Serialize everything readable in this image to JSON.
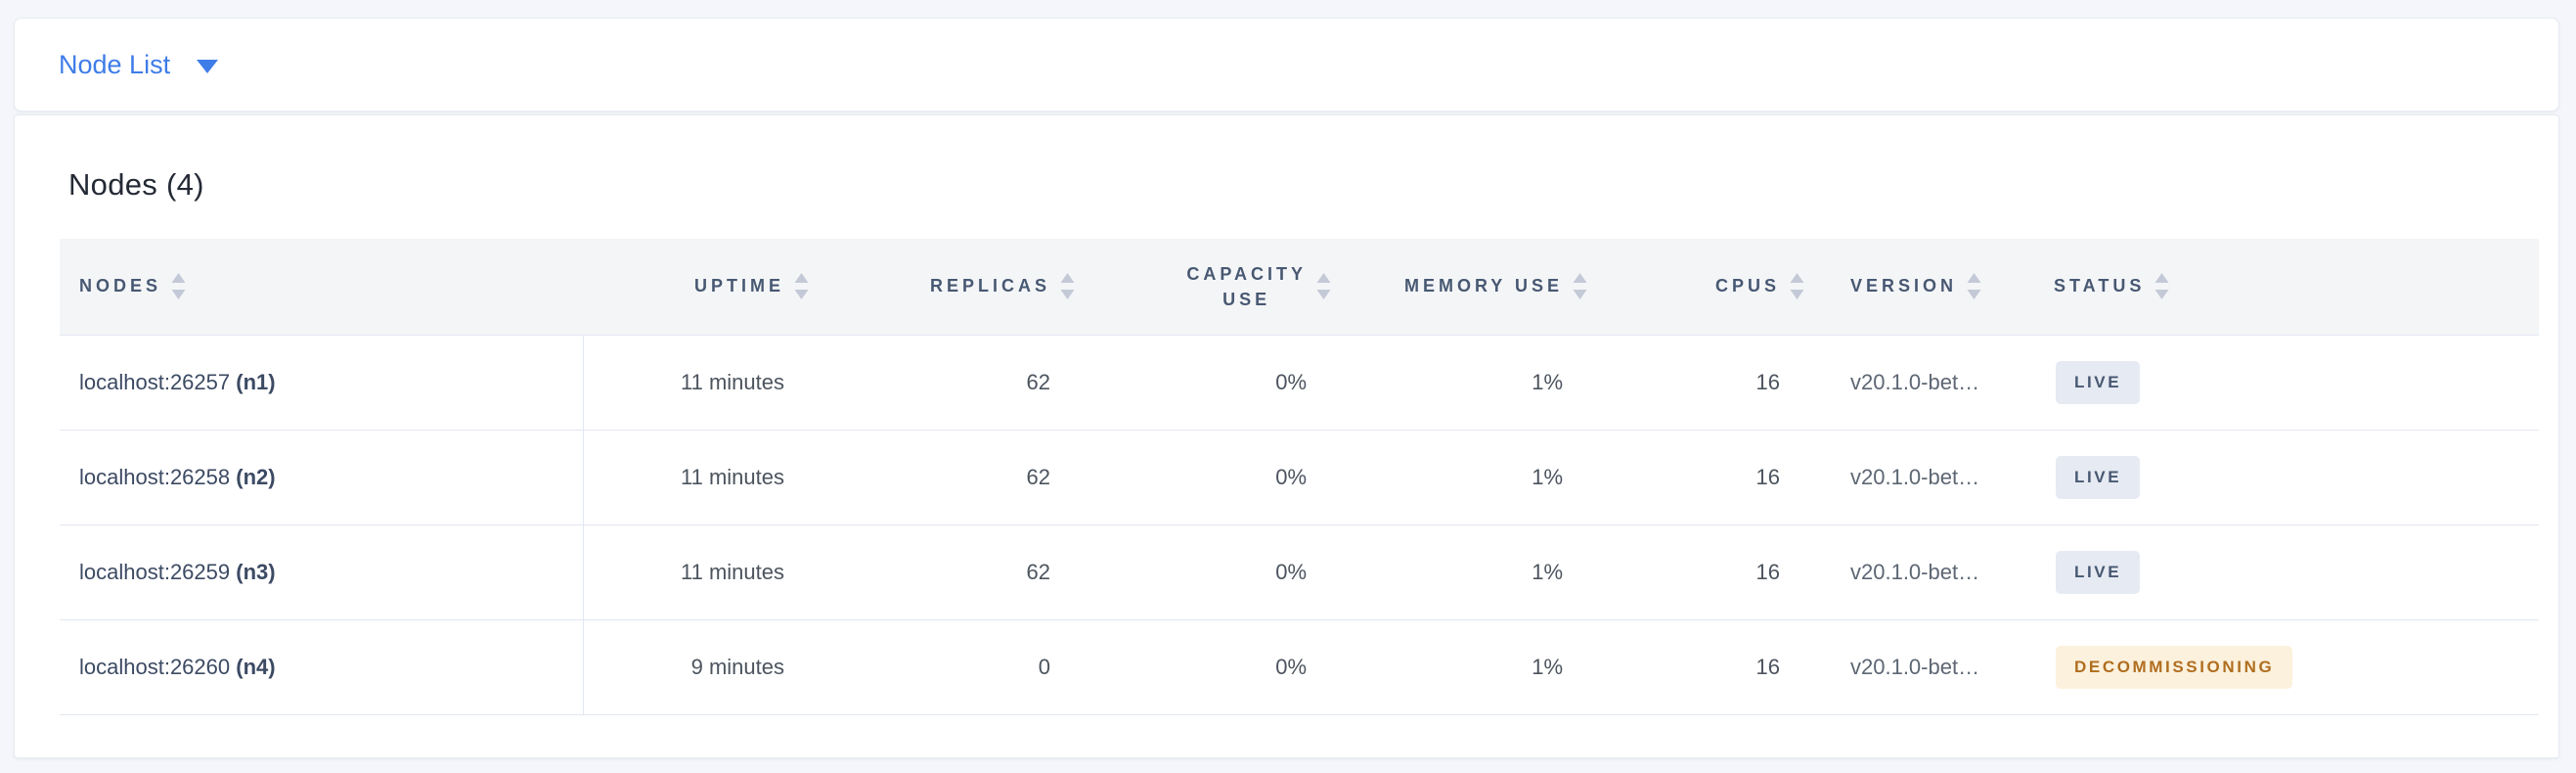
{
  "topbar": {
    "dropdown_label": "Node List",
    "dropdown_icon": "chevron-down-icon"
  },
  "panel": {
    "title": "Nodes (4)",
    "node_count": 4
  },
  "table": {
    "columns": [
      {
        "id": "nodes",
        "label": "NODES",
        "align": "left"
      },
      {
        "id": "uptime",
        "label": "UPTIME",
        "align": "right"
      },
      {
        "id": "replicas",
        "label": "REPLICAS",
        "align": "right"
      },
      {
        "id": "capacity_use",
        "label": "CAPACITY USE",
        "label_lines": [
          "CAPACITY",
          "USE"
        ],
        "align": "right"
      },
      {
        "id": "memory_use",
        "label": "MEMORY USE",
        "align": "right"
      },
      {
        "id": "cpus",
        "label": "CPUS",
        "align": "right"
      },
      {
        "id": "version",
        "label": "VERSION",
        "align": "left"
      },
      {
        "id": "status",
        "label": "STATUS",
        "align": "left"
      }
    ],
    "sort_icon": "sort-arrows-icon",
    "rows": [
      {
        "address": "localhost:26257",
        "node_id": "(n1)",
        "uptime": "11 minutes",
        "replicas": "62",
        "capacity_use": "0%",
        "memory_use": "1%",
        "cpus": "16",
        "version": "v20.1.0-bet…",
        "status": "LIVE"
      },
      {
        "address": "localhost:26258",
        "node_id": "(n2)",
        "uptime": "11 minutes",
        "replicas": "62",
        "capacity_use": "0%",
        "memory_use": "1%",
        "cpus": "16",
        "version": "v20.1.0-bet…",
        "status": "LIVE"
      },
      {
        "address": "localhost:26259",
        "node_id": "(n3)",
        "uptime": "11 minutes",
        "replicas": "62",
        "capacity_use": "0%",
        "memory_use": "1%",
        "cpus": "16",
        "version": "v20.1.0-bet…",
        "status": "LIVE"
      },
      {
        "address": "localhost:26260",
        "node_id": "(n4)",
        "uptime": "9 minutes",
        "replicas": "0",
        "capacity_use": "0%",
        "memory_use": "1%",
        "cpus": "16",
        "version": "v20.1.0-bet…",
        "status": "DECOMMISSIONING"
      }
    ]
  },
  "colors": {
    "accent_blue": "#3e7ce8",
    "header_text": "#475872",
    "sort_arrow": "#c3c9d6",
    "badge_live_bg": "#e6eaf2",
    "badge_live_fg": "#475872",
    "badge_decommissioning_bg": "#fcf1dc",
    "badge_decommissioning_fg": "#b06e20"
  }
}
